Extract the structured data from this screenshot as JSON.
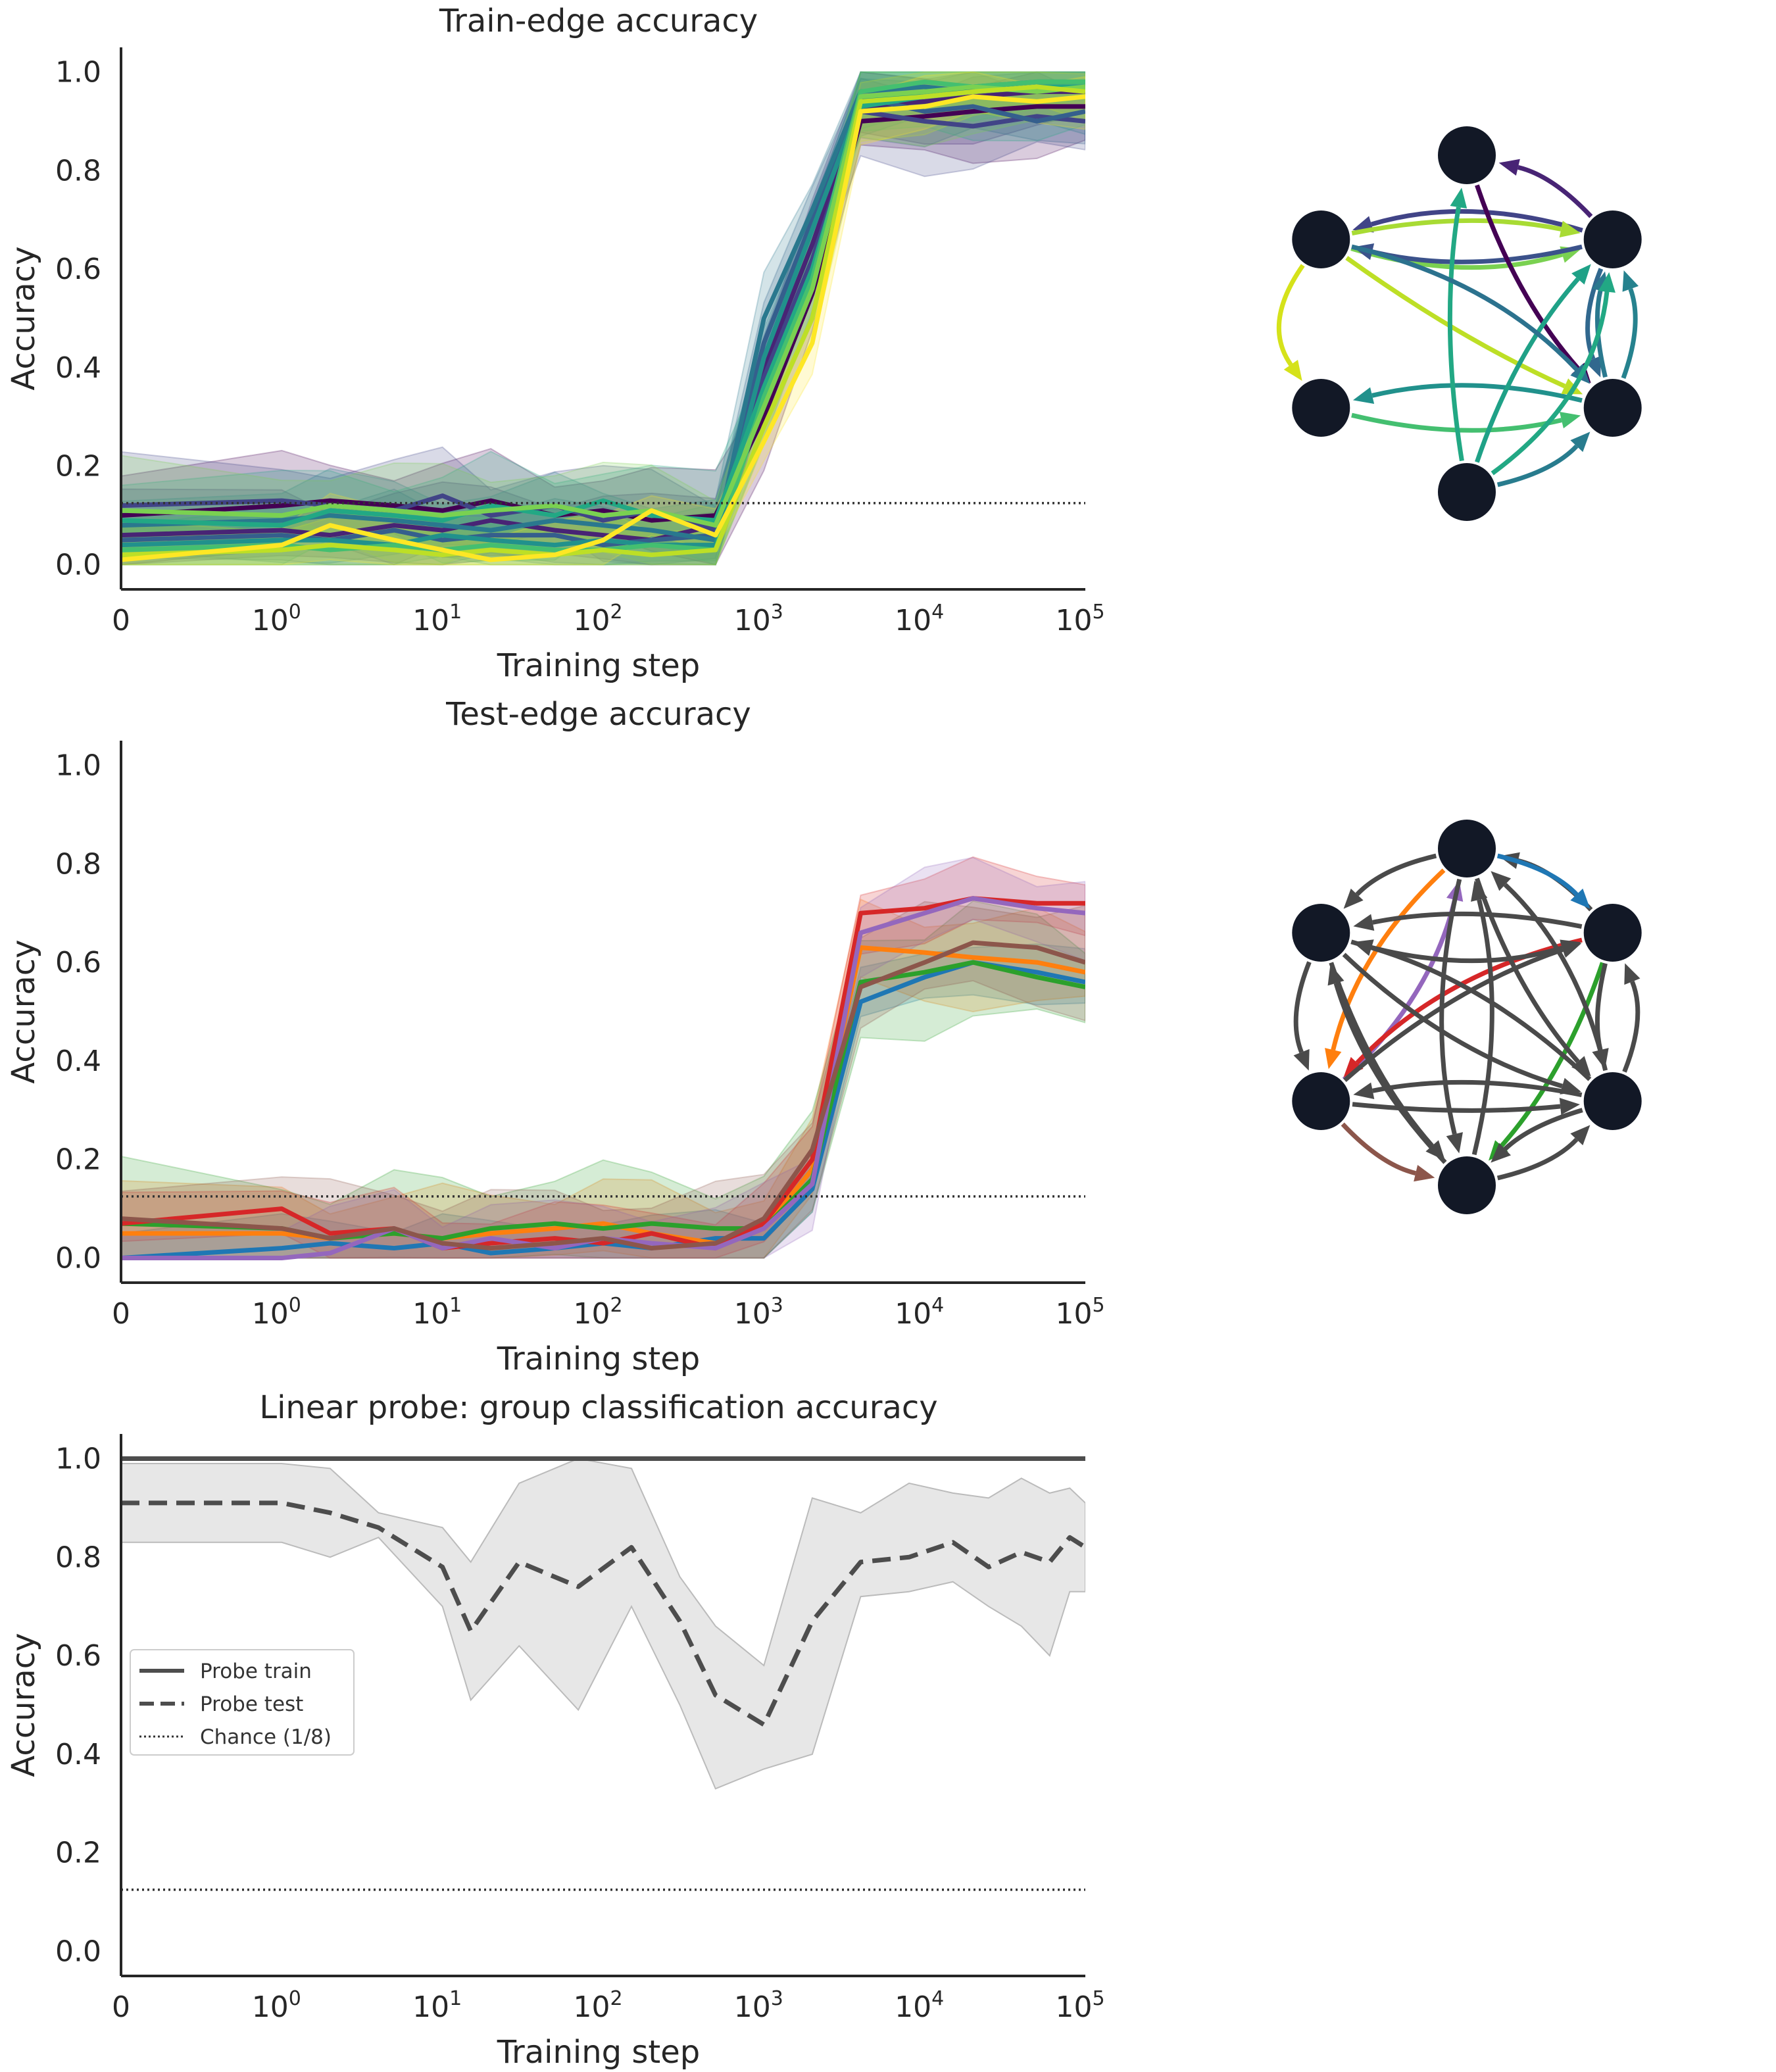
{
  "colors": {
    "axis": "#262626",
    "chance": "#333333",
    "node": "#121826",
    "probe": "#4d4d4d",
    "probe_band": "#d3d3d3",
    "gray_edge": "#4a4a4a"
  },
  "chart_data": [
    {
      "type": "line",
      "title": "Train-edge accuracy",
      "xlabel": "Training step",
      "ylabel": "Accuracy",
      "xscale": "symlog",
      "xlim": [
        0,
        100000
      ],
      "ylim": [
        -0.05,
        1.05
      ],
      "xticks": [
        {
          "value": 0,
          "base": "0",
          "exp": ""
        },
        {
          "value": 1,
          "base": "10",
          "exp": "0"
        },
        {
          "value": 10,
          "base": "10",
          "exp": "1"
        },
        {
          "value": 100,
          "base": "10",
          "exp": "2"
        },
        {
          "value": 1000,
          "base": "10",
          "exp": "3"
        },
        {
          "value": 10000,
          "base": "10",
          "exp": "4"
        },
        {
          "value": 100000,
          "base": "10",
          "exp": "5"
        }
      ],
      "yticks": [
        "0.0",
        "0.2",
        "0.4",
        "0.6",
        "0.8",
        "1.0"
      ],
      "chance": 0.125,
      "x": [
        0,
        1,
        2,
        5,
        10,
        20,
        50,
        100,
        200,
        500,
        1000,
        2000,
        4000,
        10000,
        20000,
        50000,
        100000
      ],
      "series_style": "shaded",
      "series": [
        {
          "color": "#440154",
          "values": [
            0.1,
            0.12,
            0.13,
            0.12,
            0.11,
            0.13,
            0.1,
            0.11,
            0.09,
            0.1,
            0.3,
            0.55,
            0.9,
            0.91,
            0.92,
            0.93,
            0.93
          ],
          "band": 0.08
        },
        {
          "color": "#482475",
          "values": [
            0.06,
            0.07,
            0.06,
            0.08,
            0.07,
            0.09,
            0.07,
            0.06,
            0.05,
            0.08,
            0.4,
            0.65,
            0.93,
            0.94,
            0.95,
            0.96,
            0.96
          ],
          "band": 0.07
        },
        {
          "color": "#414487",
          "values": [
            0.12,
            0.13,
            0.12,
            0.11,
            0.14,
            0.1,
            0.12,
            0.09,
            0.11,
            0.07,
            0.38,
            0.62,
            0.92,
            0.9,
            0.89,
            0.91,
            0.9
          ],
          "band": 0.08
        },
        {
          "color": "#355f8d",
          "values": [
            0.05,
            0.06,
            0.05,
            0.07,
            0.05,
            0.06,
            0.06,
            0.04,
            0.05,
            0.06,
            0.45,
            0.7,
            0.95,
            0.92,
            0.93,
            0.9,
            0.92
          ],
          "band": 0.06
        },
        {
          "color": "#2a788e",
          "values": [
            0.08,
            0.09,
            0.1,
            0.09,
            0.08,
            0.07,
            0.09,
            0.08,
            0.07,
            0.05,
            0.5,
            0.72,
            0.96,
            0.97,
            0.96,
            0.97,
            0.97
          ],
          "band": 0.07
        },
        {
          "color": "#21918c",
          "values": [
            0.04,
            0.05,
            0.05,
            0.04,
            0.06,
            0.05,
            0.04,
            0.05,
            0.04,
            0.04,
            0.42,
            0.68,
            0.94,
            0.96,
            0.97,
            0.98,
            0.98
          ],
          "band": 0.06
        },
        {
          "color": "#22a884",
          "values": [
            0.09,
            0.08,
            0.11,
            0.1,
            0.09,
            0.12,
            0.1,
            0.13,
            0.1,
            0.09,
            0.36,
            0.6,
            0.93,
            0.95,
            0.96,
            0.97,
            0.97
          ],
          "band": 0.08
        },
        {
          "color": "#44bf70",
          "values": [
            0.03,
            0.04,
            0.03,
            0.04,
            0.03,
            0.04,
            0.03,
            0.03,
            0.04,
            0.03,
            0.34,
            0.58,
            0.96,
            0.98,
            0.97,
            0.98,
            0.98
          ],
          "band": 0.05
        },
        {
          "color": "#7ad151",
          "values": [
            0.11,
            0.1,
            0.12,
            0.11,
            0.1,
            0.11,
            0.12,
            0.1,
            0.11,
            0.08,
            0.32,
            0.56,
            0.95,
            0.96,
            0.97,
            0.96,
            0.97
          ],
          "band": 0.08
        },
        {
          "color": "#bddf26",
          "values": [
            0.02,
            0.03,
            0.04,
            0.03,
            0.02,
            0.03,
            0.02,
            0.03,
            0.02,
            0.03,
            0.28,
            0.5,
            0.94,
            0.95,
            0.96,
            0.97,
            0.96
          ],
          "band": 0.06
        },
        {
          "color": "#fde725",
          "values": [
            0.01,
            0.04,
            0.08,
            0.05,
            0.03,
            0.01,
            0.02,
            0.05,
            0.11,
            0.06,
            0.25,
            0.45,
            0.92,
            0.93,
            0.95,
            0.94,
            0.95
          ],
          "band": 0.05
        }
      ]
    },
    {
      "type": "line",
      "title": "Test-edge accuracy",
      "xlabel": "Training step",
      "ylabel": "Accuracy",
      "xscale": "symlog",
      "xlim": [
        0,
        100000
      ],
      "ylim": [
        -0.05,
        1.05
      ],
      "xticks": [
        {
          "value": 0,
          "base": "0",
          "exp": ""
        },
        {
          "value": 1,
          "base": "10",
          "exp": "0"
        },
        {
          "value": 10,
          "base": "10",
          "exp": "1"
        },
        {
          "value": 100,
          "base": "10",
          "exp": "2"
        },
        {
          "value": 1000,
          "base": "10",
          "exp": "3"
        },
        {
          "value": 10000,
          "base": "10",
          "exp": "4"
        },
        {
          "value": 100000,
          "base": "10",
          "exp": "5"
        }
      ],
      "yticks": [
        "0.0",
        "0.2",
        "0.4",
        "0.6",
        "0.8",
        "1.0"
      ],
      "chance": 0.125,
      "x": [
        0,
        1,
        2,
        5,
        10,
        20,
        50,
        100,
        200,
        500,
        1000,
        2000,
        4000,
        10000,
        20000,
        50000,
        100000
      ],
      "series_style": "shaded",
      "series": [
        {
          "color": "#1f77b4",
          "values": [
            0.0,
            0.02,
            0.03,
            0.02,
            0.03,
            0.01,
            0.02,
            0.03,
            0.02,
            0.04,
            0.04,
            0.14,
            0.52,
            0.57,
            0.6,
            0.58,
            0.56
          ],
          "band": 0.05
        },
        {
          "color": "#ff7f0e",
          "values": [
            0.05,
            0.05,
            0.04,
            0.05,
            0.04,
            0.05,
            0.06,
            0.07,
            0.05,
            0.03,
            0.06,
            0.18,
            0.63,
            0.62,
            0.61,
            0.6,
            0.58
          ],
          "band": 0.08
        },
        {
          "color": "#2ca02c",
          "values": [
            0.07,
            0.06,
            0.04,
            0.05,
            0.04,
            0.06,
            0.07,
            0.06,
            0.07,
            0.06,
            0.06,
            0.16,
            0.56,
            0.58,
            0.6,
            0.57,
            0.55
          ],
          "band": 0.1
        },
        {
          "color": "#d62728",
          "values": [
            0.07,
            0.1,
            0.05,
            0.06,
            0.02,
            0.03,
            0.04,
            0.03,
            0.05,
            0.02,
            0.07,
            0.2,
            0.7,
            0.71,
            0.73,
            0.72,
            0.72
          ],
          "band": 0.06
        },
        {
          "color": "#9467bd",
          "values": [
            0.0,
            0.0,
            0.01,
            0.06,
            0.02,
            0.04,
            0.02,
            0.04,
            0.03,
            0.02,
            0.06,
            0.15,
            0.66,
            0.7,
            0.73,
            0.71,
            0.7
          ],
          "band": 0.07
        },
        {
          "color": "#8c564b",
          "values": [
            0.08,
            0.06,
            0.04,
            0.06,
            0.03,
            0.02,
            0.03,
            0.04,
            0.02,
            0.03,
            0.08,
            0.22,
            0.55,
            0.6,
            0.64,
            0.63,
            0.6
          ],
          "band": 0.09
        }
      ]
    },
    {
      "type": "line",
      "title": "Linear probe: group classification accuracy",
      "xlabel": "Training step",
      "ylabel": "Accuracy",
      "xscale": "symlog",
      "xlim": [
        0,
        100000
      ],
      "ylim": [
        -0.05,
        1.05
      ],
      "xticks": [
        {
          "value": 0,
          "base": "0",
          "exp": ""
        },
        {
          "value": 1,
          "base": "10",
          "exp": "0"
        },
        {
          "value": 10,
          "base": "10",
          "exp": "1"
        },
        {
          "value": 100,
          "base": "10",
          "exp": "2"
        },
        {
          "value": 1000,
          "base": "10",
          "exp": "3"
        },
        {
          "value": 10000,
          "base": "10",
          "exp": "4"
        },
        {
          "value": 100000,
          "base": "10",
          "exp": "5"
        }
      ],
      "yticks": [
        "0.0",
        "0.2",
        "0.4",
        "0.6",
        "0.8",
        "1.0"
      ],
      "chance": 0.125,
      "legend": {
        "position": "center-left",
        "items": [
          "Probe train",
          "Probe test",
          "Chance (1/8)"
        ]
      },
      "x": [
        0,
        1,
        2,
        4,
        10,
        15,
        30,
        70,
        150,
        300,
        500,
        1000,
        2000,
        4000,
        8000,
        15000,
        25000,
        40000,
        60000,
        80000,
        100000
      ],
      "series_style": "probe",
      "series": [
        {
          "name": "Probe train",
          "style": "solid",
          "values": [
            1.0,
            1.0,
            1.0,
            1.0,
            1.0,
            1.0,
            1.0,
            1.0,
            1.0,
            1.0,
            1.0,
            1.0,
            1.0,
            1.0,
            1.0,
            1.0,
            1.0,
            1.0,
            1.0,
            1.0,
            1.0
          ]
        },
        {
          "name": "Probe test",
          "style": "dashed",
          "values": [
            0.91,
            0.91,
            0.89,
            0.86,
            0.78,
            0.65,
            0.79,
            0.74,
            0.82,
            0.67,
            0.52,
            0.46,
            0.67,
            0.79,
            0.8,
            0.83,
            0.78,
            0.81,
            0.79,
            0.84,
            0.82
          ],
          "lower": [
            0.83,
            0.83,
            0.8,
            0.84,
            0.7,
            0.51,
            0.62,
            0.49,
            0.7,
            0.5,
            0.33,
            0.37,
            0.4,
            0.72,
            0.73,
            0.75,
            0.7,
            0.66,
            0.6,
            0.73,
            0.73
          ],
          "upper": [
            0.99,
            0.99,
            0.98,
            0.89,
            0.86,
            0.79,
            0.95,
            1.0,
            0.98,
            0.76,
            0.66,
            0.58,
            0.92,
            0.89,
            0.95,
            0.93,
            0.92,
            0.96,
            0.93,
            0.94,
            0.91
          ]
        }
      ]
    }
  ],
  "graphs": [
    {
      "edges": [
        {
          "from": 1,
          "to": 0,
          "color": "#482475",
          "bend": 0.15
        },
        {
          "from": 1,
          "to": 5,
          "color": "#414487",
          "bend": 0.15
        },
        {
          "from": 5,
          "to": 1,
          "color": "#7ad151",
          "bend": 0.15
        },
        {
          "from": 5,
          "to": 1,
          "color": "#a8db34",
          "bend": -0.1
        },
        {
          "from": 1,
          "to": 5,
          "color": "#3b528b",
          "bend": -0.12
        },
        {
          "from": 0,
          "to": 2,
          "color": "#440154",
          "bend": 0.1
        },
        {
          "from": 1,
          "to": 2,
          "color": "#31688e",
          "bend": 0.2
        },
        {
          "from": 2,
          "to": 1,
          "color": "#2a788e",
          "bend": -0.12
        },
        {
          "from": 2,
          "to": 1,
          "color": "#26828e",
          "bend": 0.18
        },
        {
          "from": 5,
          "to": 4,
          "color": "#d5e21a",
          "bend": 0.35
        },
        {
          "from": 2,
          "to": 4,
          "color": "#21918c",
          "bend": 0.12
        },
        {
          "from": 4,
          "to": 2,
          "color": "#44bf70",
          "bend": 0.12
        },
        {
          "from": 5,
          "to": 2,
          "color": "#bddf26",
          "bend": 0.05
        },
        {
          "from": 3,
          "to": 0,
          "color": "#22a884",
          "bend": -0.08
        },
        {
          "from": 3,
          "to": 1,
          "color": "#1fa187",
          "bend": -0.1
        },
        {
          "from": 5,
          "to": 2,
          "color": "#2c728e",
          "bend": -0.15
        },
        {
          "from": 3,
          "to": 2,
          "color": "#287c8e",
          "bend": 0.15
        },
        {
          "from": 3,
          "to": 1,
          "color": "#22a884",
          "bend": 0.22
        }
      ]
    },
    {
      "edges": [
        {
          "from": 1,
          "to": 0,
          "color": "#4a4a4a",
          "bend": 0.15
        },
        {
          "from": 0,
          "to": 5,
          "color": "#4a4a4a",
          "bend": 0.15
        },
        {
          "from": 0,
          "to": 1,
          "color": "#1f77b4",
          "bend": -0.15
        },
        {
          "from": 0,
          "to": 4,
          "color": "#ff7f0e",
          "bend": 0.15
        },
        {
          "from": 4,
          "to": 0,
          "color": "#9467bd",
          "bend": 0.15
        },
        {
          "from": 1,
          "to": 4,
          "color": "#d62728",
          "bend": 0.15
        },
        {
          "from": 1,
          "to": 3,
          "color": "#2ca02c",
          "bend": -0.1
        },
        {
          "from": 4,
          "to": 3,
          "color": "#8c564b",
          "bend": 0.15
        },
        {
          "from": 5,
          "to": 4,
          "color": "#4a4a4a",
          "bend": 0.2
        },
        {
          "from": 5,
          "to": 1,
          "color": "#4a4a4a",
          "bend": 0.15
        },
        {
          "from": 1,
          "to": 5,
          "color": "#4a4a4a",
          "bend": 0.1
        },
        {
          "from": 5,
          "to": 2,
          "color": "#4a4a4a",
          "bend": 0.12
        },
        {
          "from": 2,
          "to": 5,
          "color": "#4a4a4a",
          "bend": 0.12
        },
        {
          "from": 0,
          "to": 2,
          "color": "#4a4a4a",
          "bend": 0.1
        },
        {
          "from": 0,
          "to": 3,
          "color": "#4a4a4a",
          "bend": 0.12
        },
        {
          "from": 3,
          "to": 0,
          "color": "#4a4a4a",
          "bend": 0.12
        },
        {
          "from": 4,
          "to": 1,
          "color": "#4a4a4a",
          "bend": -0.1
        },
        {
          "from": 2,
          "to": 4,
          "color": "#4a4a4a",
          "bend": 0.1
        },
        {
          "from": 4,
          "to": 2,
          "color": "#4a4a4a",
          "bend": 0.05
        },
        {
          "from": 3,
          "to": 2,
          "color": "#4a4a4a",
          "bend": 0.15
        },
        {
          "from": 2,
          "to": 3,
          "color": "#4a4a4a",
          "bend": 0.12
        },
        {
          "from": 2,
          "to": 1,
          "color": "#4a4a4a",
          "bend": 0.2
        },
        {
          "from": 1,
          "to": 2,
          "color": "#4a4a4a",
          "bend": 0.12
        },
        {
          "from": 5,
          "to": 3,
          "color": "#4a4a4a",
          "bend": 0.1
        },
        {
          "from": 3,
          "to": 5,
          "color": "#4a4a4a",
          "bend": -0.12
        },
        {
          "from": 2,
          "to": 0,
          "color": "#4a4a4a",
          "bend": 0.15
        }
      ]
    }
  ]
}
